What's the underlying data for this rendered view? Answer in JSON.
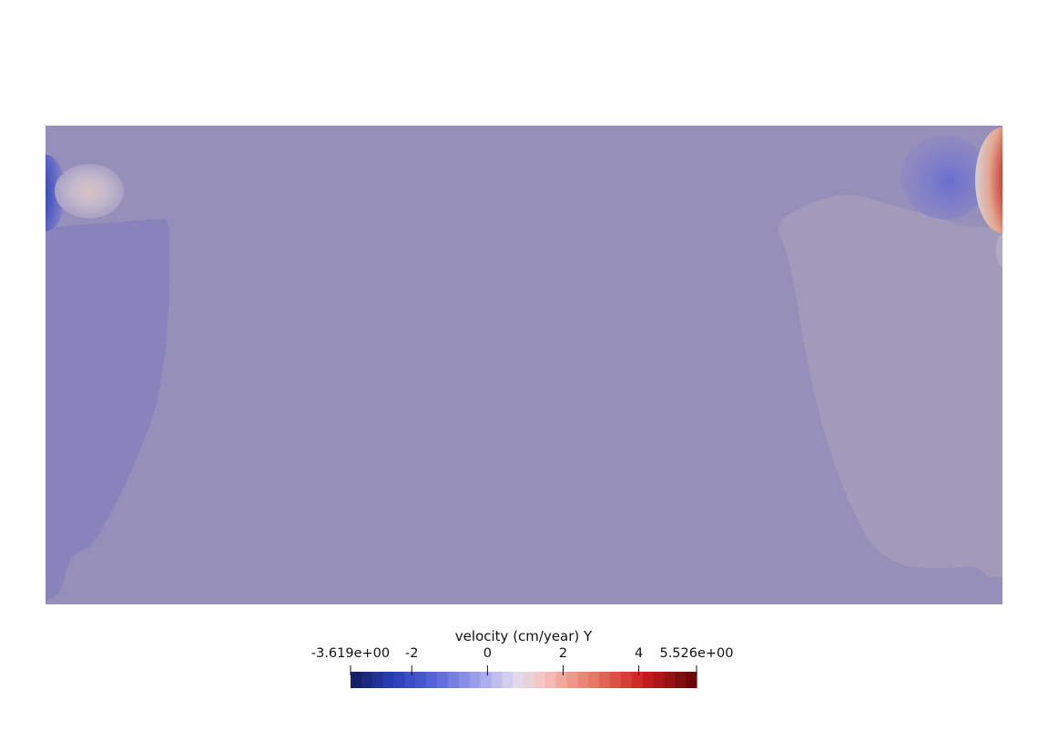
{
  "legend": {
    "title": "velocity (cm/year) Y",
    "min_label": "-3.619e+00",
    "max_label": "5.526e+00",
    "min": -3.619,
    "max": 5.526,
    "colormap": "Cool to Warm (Extended), discretized",
    "ticks": [
      {
        "value": -2,
        "label": "-2"
      },
      {
        "value": 0,
        "label": "0"
      },
      {
        "value": 2,
        "label": "2"
      },
      {
        "value": 4,
        "label": "4"
      }
    ]
  },
  "field": {
    "background_color": "#958fba",
    "colors": {
      "left_plume": "#8a82bb",
      "right_plume": "#a19ab8",
      "neg_extreme": "#1a2a7a",
      "pos_extreme": "#7a0a0a"
    }
  }
}
